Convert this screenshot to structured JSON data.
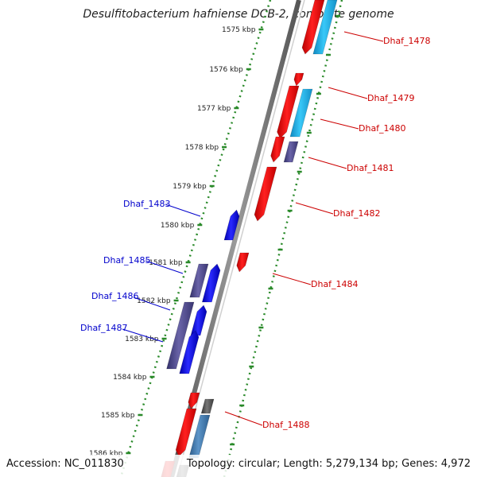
{
  "title": "Desulfitobacterium hafniense DCB-2, complete genome",
  "footer": {
    "accession": "Accession: NC_011830",
    "summary": "Topology: circular; Length: 5,279,134 bp; Genes: 4,972"
  },
  "colors": {
    "backbone": "#7a7a7a",
    "dotted_track": "#2a8a2a",
    "forward_label": "#0000cc",
    "reverse_label": "#cc0000",
    "red_gene": "#ff1a1a",
    "cyan_gene": "#22b8ee",
    "blue_gene": "#1a1aee",
    "purple_gene": "#55508a",
    "gray_gene": "#5a5a5a",
    "steelblue_gene": "#4a7fb0"
  },
  "ticks": [
    {
      "label": "1575 kbp",
      "kbp": 1575
    },
    {
      "label": "1576 kbp",
      "kbp": 1576
    },
    {
      "label": "1577 kbp",
      "kbp": 1577
    },
    {
      "label": "1578 kbp",
      "kbp": 1578
    },
    {
      "label": "1579 kbp",
      "kbp": 1579
    },
    {
      "label": "1580 kbp",
      "kbp": 1580
    },
    {
      "label": "1581 kbp",
      "kbp": 1581
    },
    {
      "label": "1582 kbp",
      "kbp": 1582
    },
    {
      "label": "1583 kbp",
      "kbp": 1583
    },
    {
      "label": "1584 kbp",
      "kbp": 1584
    },
    {
      "label": "1585 kbp",
      "kbp": 1585
    },
    {
      "label": "1586 kbp",
      "kbp": 1586
    }
  ],
  "forward_genes_labeled": [
    {
      "label": "Dhaf_1483"
    },
    {
      "label": "Dhaf_1485"
    },
    {
      "label": "Dhaf_1486"
    },
    {
      "label": "Dhaf_1487"
    }
  ],
  "reverse_genes_labeled": [
    {
      "label": "Dhaf_1478"
    },
    {
      "label": "Dhaf_1479"
    },
    {
      "label": "Dhaf_1480"
    },
    {
      "label": "Dhaf_1481"
    },
    {
      "label": "Dhaf_1482"
    },
    {
      "label": "Dhaf_1484"
    },
    {
      "label": "Dhaf_1488"
    }
  ]
}
